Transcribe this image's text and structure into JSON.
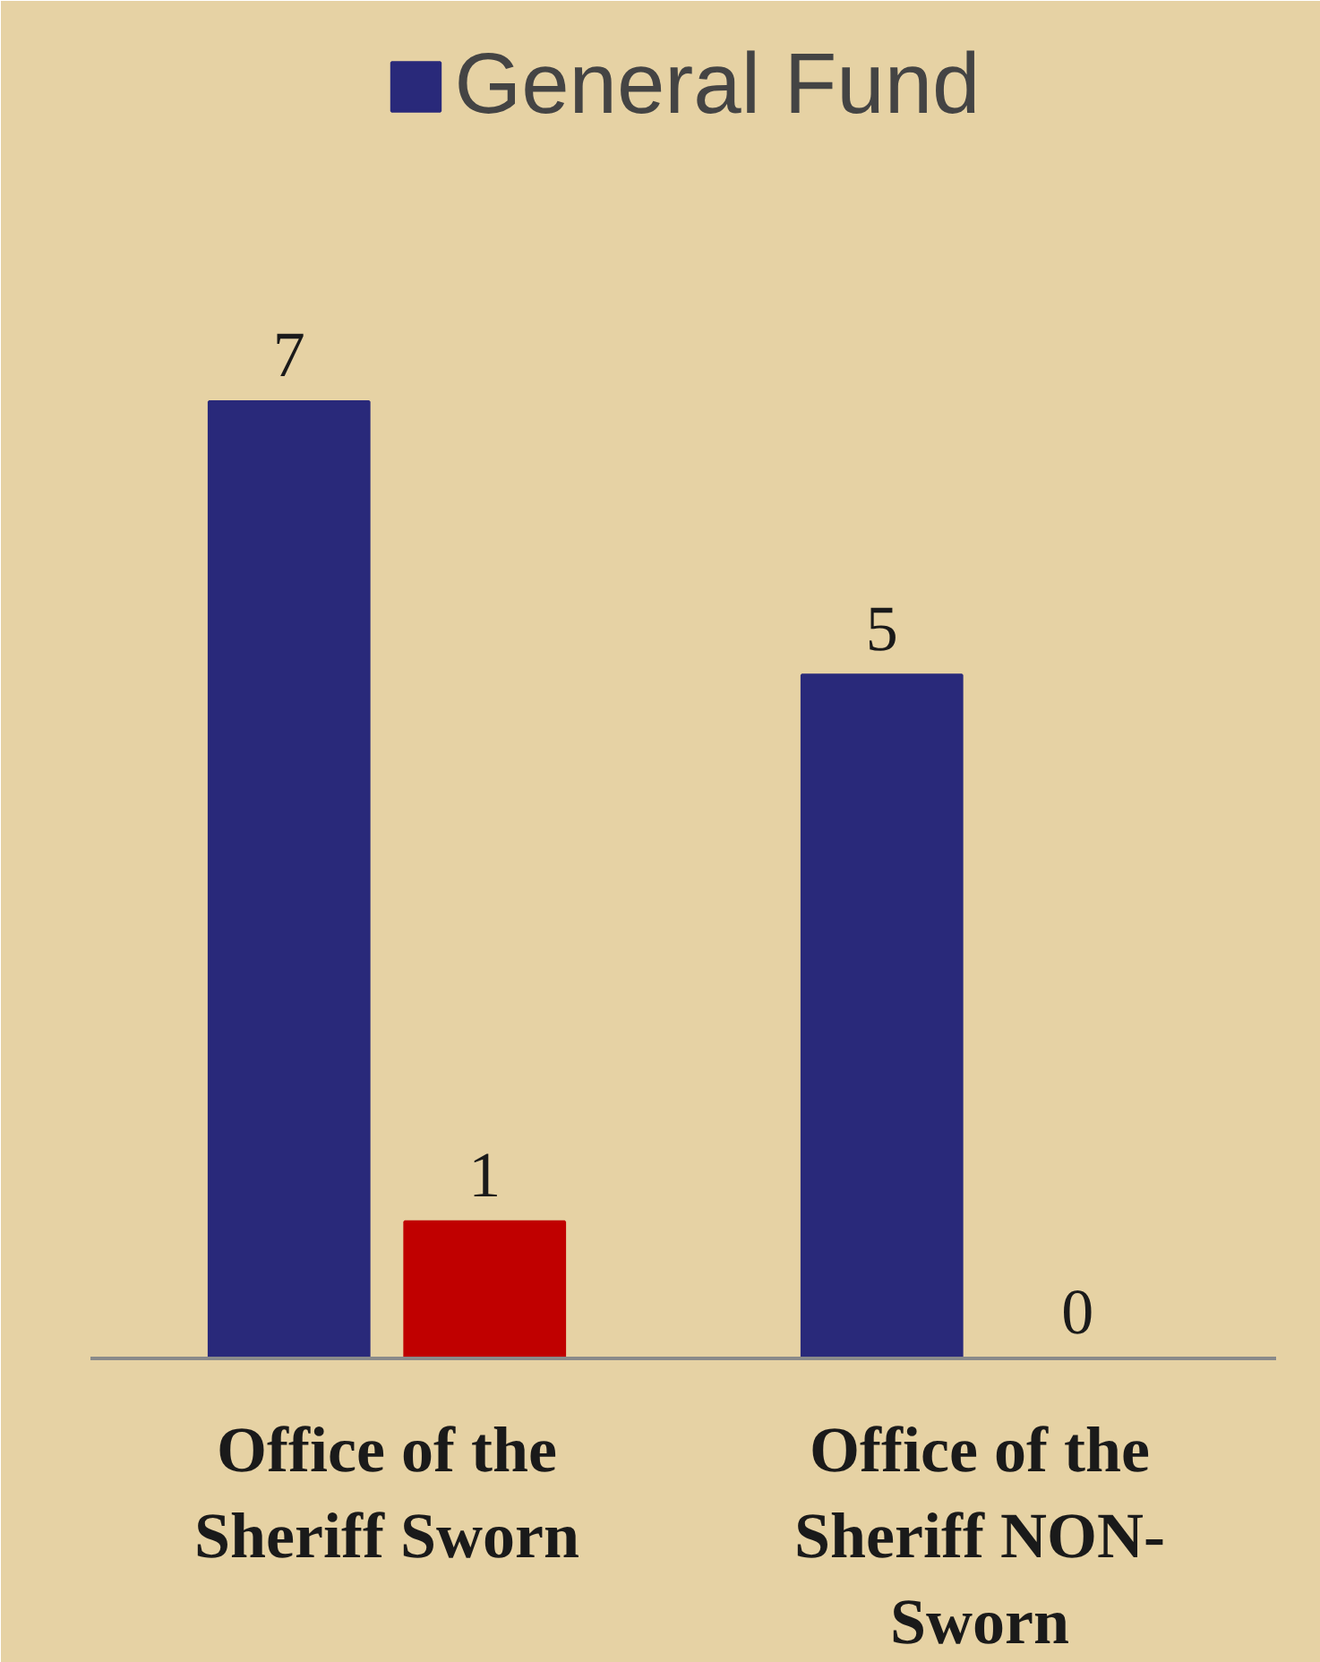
{
  "chart_data": {
    "type": "bar",
    "categories": [
      "Office of the Sheriff Sworn",
      "Office of the Sheriff NON-Sworn"
    ],
    "series": [
      {
        "name": "General Fund",
        "color": "#29297a",
        "values": [
          7,
          5
        ]
      },
      {
        "color": "#c00000",
        "values": [
          1,
          0
        ]
      }
    ],
    "data_labels": true,
    "legend": "top",
    "grid": false
  }
}
